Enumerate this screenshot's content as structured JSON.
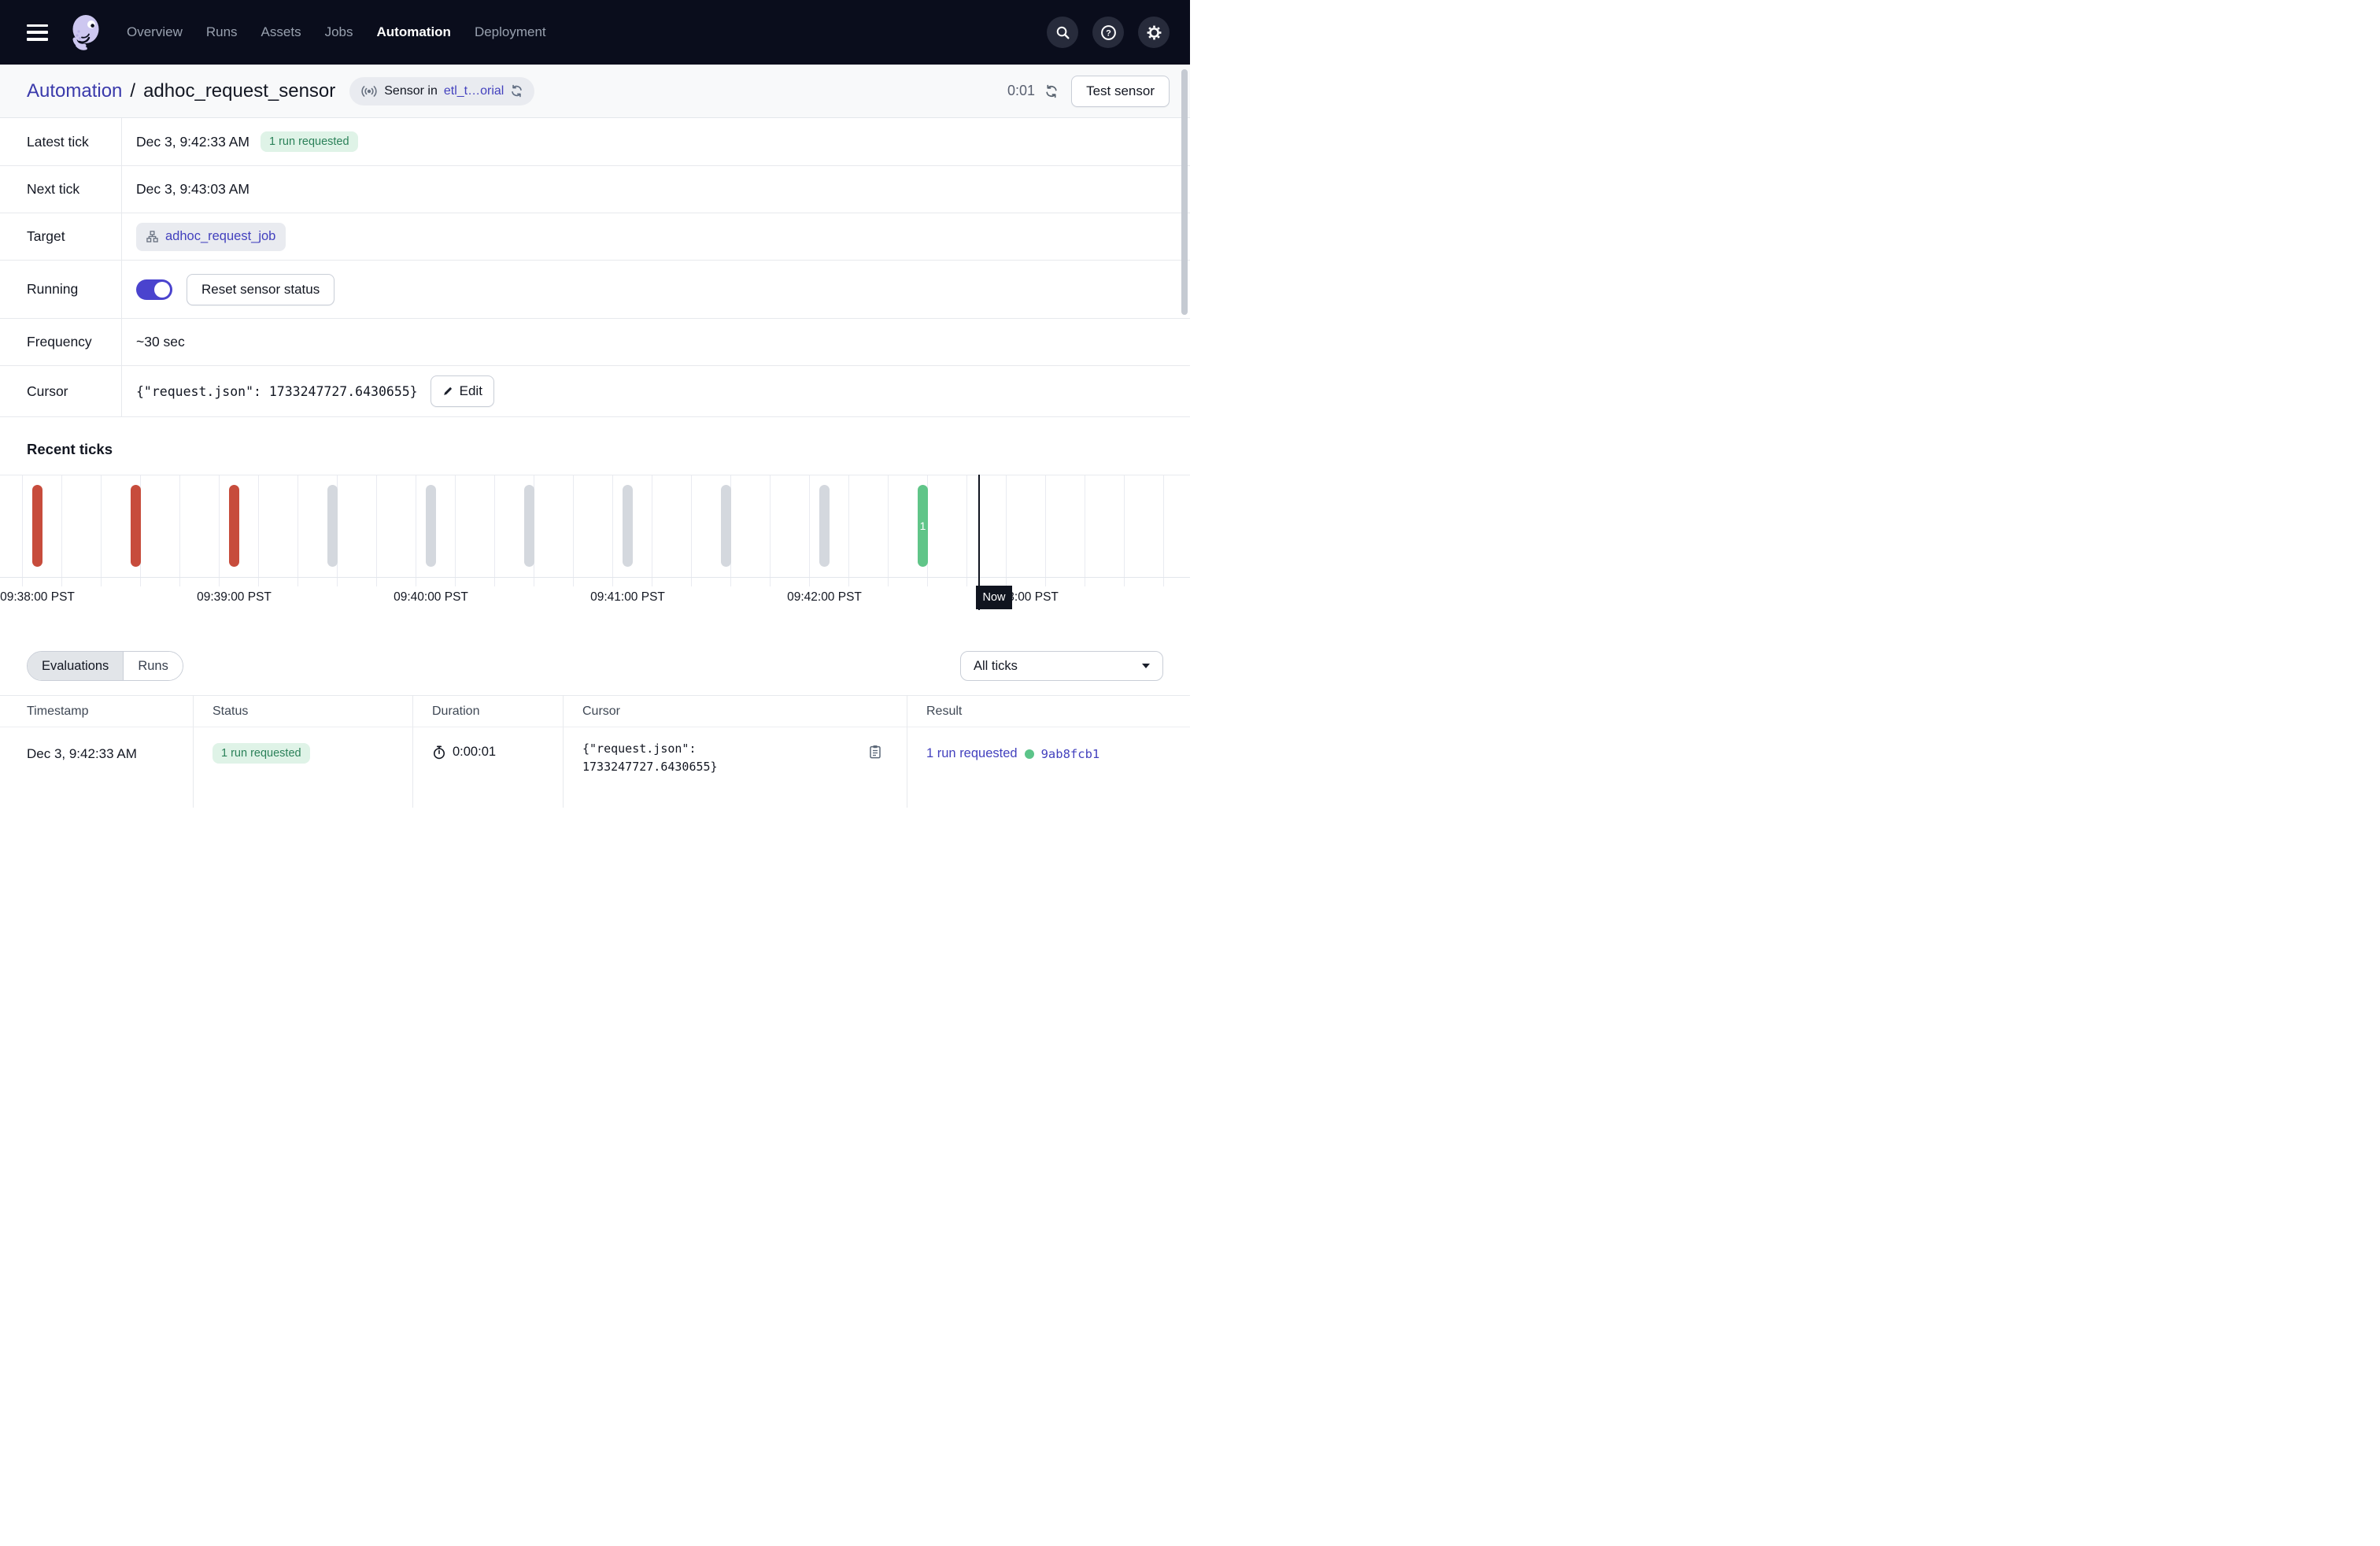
{
  "nav": {
    "items": [
      {
        "label": "Overview",
        "active": false
      },
      {
        "label": "Runs",
        "active": false
      },
      {
        "label": "Assets",
        "active": false
      },
      {
        "label": "Jobs",
        "active": false
      },
      {
        "label": "Automation",
        "active": true
      },
      {
        "label": "Deployment",
        "active": false
      }
    ],
    "icons": [
      "search-icon",
      "help-icon",
      "gear-icon"
    ]
  },
  "header": {
    "breadcrumb": {
      "section": "Automation",
      "separator": "/",
      "name": "adhoc_request_sensor"
    },
    "badge": {
      "icon": "sensor-icon",
      "prefix": "Sensor in",
      "link": "etl_t…orial",
      "trailing_icon": "sync-icon"
    },
    "timer": "0:01",
    "test_button": "Test sensor"
  },
  "details": {
    "latest_tick": {
      "label": "Latest tick",
      "value": "Dec 3, 9:42:33 AM",
      "badge": "1 run requested"
    },
    "next_tick": {
      "label": "Next tick",
      "value": "Dec 3, 9:43:03 AM"
    },
    "target": {
      "label": "Target",
      "job_link": "adhoc_request_job",
      "icon": "job-icon"
    },
    "running": {
      "label": "Running",
      "toggle_on": true,
      "reset_button": "Reset sensor status"
    },
    "frequency": {
      "label": "Frequency",
      "value": "~30 sec"
    },
    "cursor": {
      "label": "Cursor",
      "value": "{\"request.json\": 1733247727.6430655}",
      "edit_button": "Edit"
    }
  },
  "recent_ticks": {
    "title": "Recent ticks",
    "chart_data": {
      "type": "bar",
      "x_labels": [
        "09:38:00 PST",
        "09:39:00 PST",
        "09:40:00 PST",
        "09:41:00 PST",
        "09:42:00 PST",
        "09:43:00 PST"
      ],
      "bars": [
        {
          "time": "09:38:00",
          "status": "failed",
          "color": "#C74C3C"
        },
        {
          "time": "09:38:30",
          "status": "failed",
          "color": "#C74C3C"
        },
        {
          "time": "09:39:00",
          "status": "failed",
          "color": "#C74C3C"
        },
        {
          "time": "09:39:30",
          "status": "skipped",
          "color": "#D4D8DE"
        },
        {
          "time": "09:40:00",
          "status": "skipped",
          "color": "#D4D8DE"
        },
        {
          "time": "09:40:30",
          "status": "skipped",
          "color": "#D4D8DE"
        },
        {
          "time": "09:41:00",
          "status": "skipped",
          "color": "#D4D8DE"
        },
        {
          "time": "09:41:30",
          "status": "skipped",
          "color": "#D4D8DE"
        },
        {
          "time": "09:42:00",
          "status": "skipped",
          "color": "#D4D8DE"
        },
        {
          "time": "09:42:30",
          "status": "success",
          "color": "#60C588",
          "label": "1"
        }
      ],
      "now_label": "Now",
      "legend": "off",
      "grid": "vertical"
    }
  },
  "filters": {
    "tabs": [
      {
        "label": "Evaluations",
        "active": true
      },
      {
        "label": "Runs",
        "active": false
      }
    ],
    "ticks_filter": "All ticks"
  },
  "table": {
    "columns": [
      "Timestamp",
      "Status",
      "Duration",
      "Cursor",
      "Result"
    ],
    "row": {
      "timestamp": "Dec 3, 9:42:33 AM",
      "status": "1 run requested",
      "duration": "0:00:01",
      "cursor_line1": "{\"request.json\":",
      "cursor_line2": "1733247727.6430655}",
      "result_link": "1 run requested",
      "run_id": "9ab8fcb1"
    }
  },
  "colors": {
    "nav_bg": "#0A0D1C",
    "accent_link": "#4341BE",
    "toggle_on": "#4A43CE",
    "tick_failed": "#C74C3C",
    "tick_skipped": "#D4D8DE",
    "tick_success": "#60C588",
    "badge_green_bg": "#DFF3E7",
    "badge_green_text": "#2B8159"
  }
}
